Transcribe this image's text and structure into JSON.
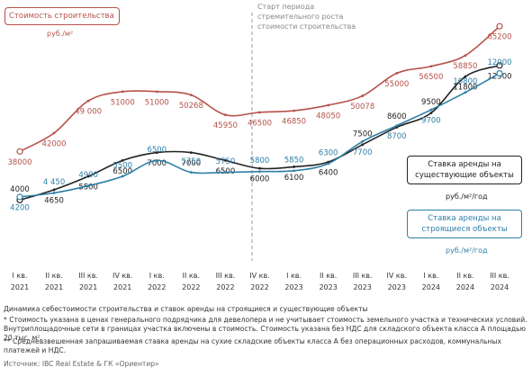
{
  "chart_data": {
    "type": "line",
    "title": "Стоимость строительства",
    "title_unit": "руб./м²",
    "annotation": "Старт периода стремительного роста стоимости строительства",
    "categories": [
      "I кв. 2021",
      "II кв. 2021",
      "III кв. 2021",
      "IV кв. 2021",
      "I кв. 2022",
      "II кв. 2022",
      "III кв. 2022",
      "IV кв. 2022",
      "I кв. 2023",
      "II кв. 2023",
      "III кв. 2023",
      "IV кв. 2023",
      "I кв. 2024",
      "II кв. 2024",
      "III кв. 2024"
    ],
    "ylim": [
      3000,
      15500
    ],
    "y2lim": [
      24000,
      67000
    ],
    "series": [
      {
        "name": "Стоимость строительства",
        "color": "#b5524a",
        "axis": "y2",
        "values": [
          38000,
          42000,
          49000,
          51000,
          51000,
          50268,
          45950,
          46500,
          46850,
          48050,
          50078,
          55000,
          56500,
          58850,
          65200
        ],
        "value_labels": [
          "38000",
          "42000",
          "49 000",
          "51000",
          "51000",
          "50268",
          "45950",
          "46500",
          "46850",
          "48050",
          "50078",
          "55000",
          "56500",
          "58850",
          "65200"
        ]
      },
      {
        "name": "Ставка аренды на существующие объекты",
        "unit": "руб./м²/год",
        "color": "#222222",
        "values": [
          4000,
          4650,
          5500,
          6500,
          7000,
          7000,
          6500,
          6000,
          6100,
          6400,
          7500,
          8600,
          9500,
          11800,
          12500
        ]
      },
      {
        "name": "Ставка аренды на строящиеся объекты",
        "unit": "руб./м²/год",
        "color": "#2e7fa6",
        "values": [
          4200,
          4450,
          4900,
          5500,
          6500,
          5750,
          5750,
          5800,
          5850,
          6300,
          7700,
          8700,
          9700,
          10800,
          12000
        ],
        "value_labels": [
          "4200",
          "4 450",
          "4900",
          "5500",
          "6500",
          "5750",
          "5750",
          "5800",
          "5850",
          "6300",
          "7700",
          "8700",
          "9700",
          "10800",
          "12000"
        ]
      }
    ],
    "caption": "Динамика себестоимости строительства и ставок аренды на строящиеся и существующие объекты",
    "notes": [
      "* Стоимость указана в ценах генерального подрядчика для девелопера и не учитывает стоимость земельного участка и технических условий. Внутриплощадочные сети в границах участка включены в стоимость. Стоимость указана без НДС для складского объекта класса А площадью 20 тыс. м².",
      "** Средневзвешенная запрашиваемая ставка аренды на сухие складские объекты класса А без операционных расходов, коммунальных платежей и НДС."
    ],
    "source": "Источник: IBC Real Estate & ГК «Ориентир»"
  }
}
